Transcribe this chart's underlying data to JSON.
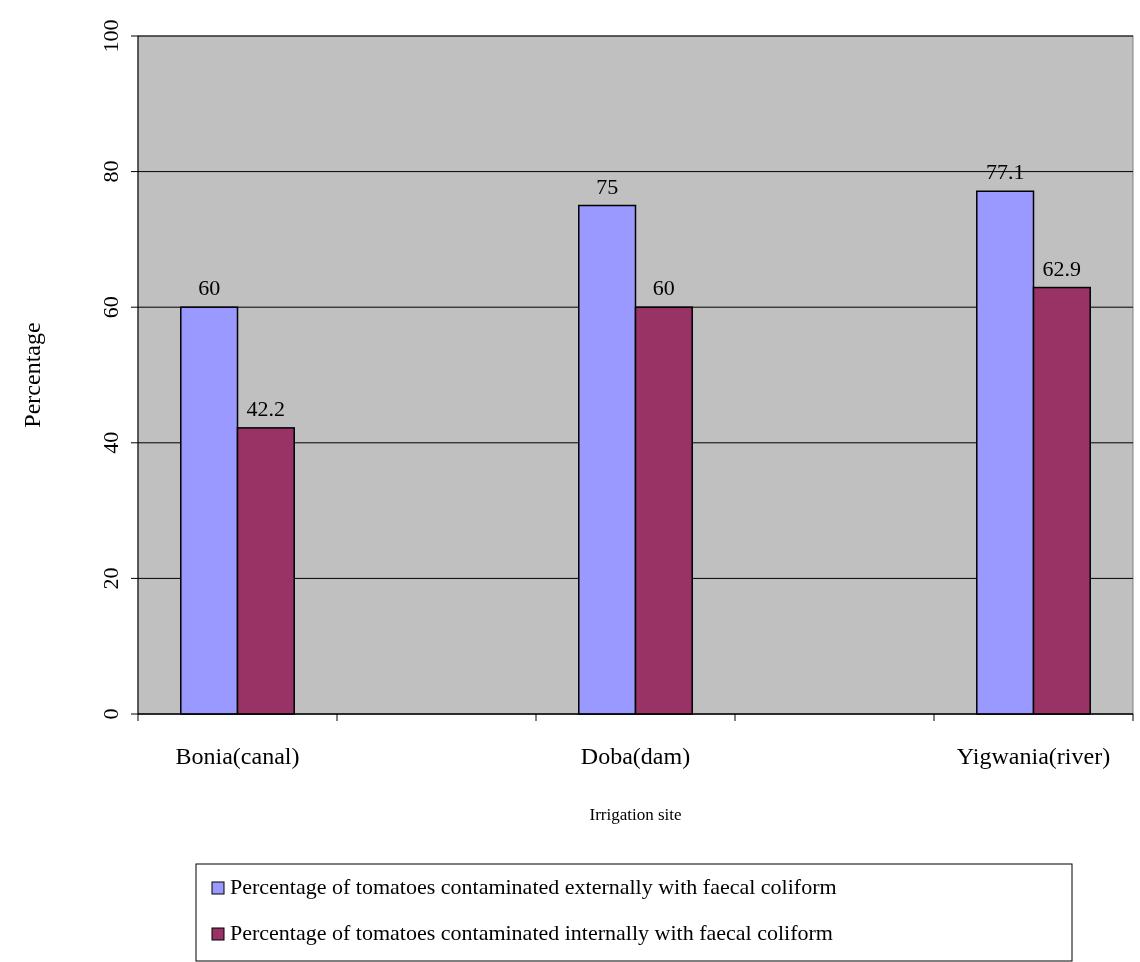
{
  "chart_data": {
    "type": "bar",
    "xlabel": "Irrigation site",
    "ylabel": "Percentage",
    "categories": [
      "Bonia(canal)",
      null,
      "Doba(dam)",
      null,
      "Yigwania(river)"
    ],
    "series": [
      {
        "name": "Percentage of tomatoes contaminated externally with faecal coliform",
        "color": "#9999ff",
        "values": [
          60,
          null,
          75,
          null,
          77.1
        ]
      },
      {
        "name": "Percentage of tomatoes contaminated internally with faecal coliform",
        "color": "#993366",
        "values": [
          42.2,
          null,
          60,
          null,
          62.9
        ]
      }
    ],
    "ylim": [
      0,
      100
    ],
    "yticks": [
      0,
      20,
      40,
      60,
      80,
      100
    ],
    "grid": "y",
    "legend": "bottom",
    "data_labels": true
  }
}
